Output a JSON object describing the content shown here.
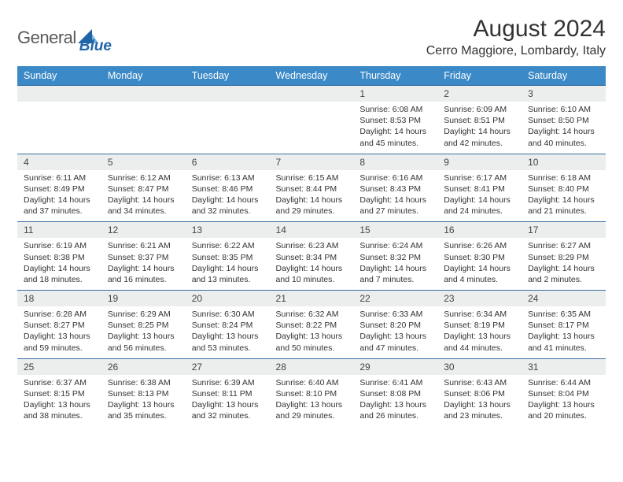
{
  "logo": {
    "text_gray": "General",
    "text_blue": "Blue"
  },
  "title": "August 2024",
  "location": "Cerro Maggiore, Lombardy, Italy",
  "colors": {
    "header_bg": "#3b89c7",
    "header_text": "#ffffff",
    "date_row_bg": "#eceded",
    "row_border": "#3b6fa0",
    "body_text": "#333333",
    "logo_gray": "#5a5a5a",
    "logo_blue": "#1f66a8"
  },
  "days": [
    "Sunday",
    "Monday",
    "Tuesday",
    "Wednesday",
    "Thursday",
    "Friday",
    "Saturday"
  ],
  "weeks": [
    [
      null,
      null,
      null,
      null,
      {
        "n": "1",
        "sunrise": "6:08 AM",
        "sunset": "8:53 PM",
        "dl1": "Daylight: 14 hours",
        "dl2": "and 45 minutes."
      },
      {
        "n": "2",
        "sunrise": "6:09 AM",
        "sunset": "8:51 PM",
        "dl1": "Daylight: 14 hours",
        "dl2": "and 42 minutes."
      },
      {
        "n": "3",
        "sunrise": "6:10 AM",
        "sunset": "8:50 PM",
        "dl1": "Daylight: 14 hours",
        "dl2": "and 40 minutes."
      }
    ],
    [
      {
        "n": "4",
        "sunrise": "6:11 AM",
        "sunset": "8:49 PM",
        "dl1": "Daylight: 14 hours",
        "dl2": "and 37 minutes."
      },
      {
        "n": "5",
        "sunrise": "6:12 AM",
        "sunset": "8:47 PM",
        "dl1": "Daylight: 14 hours",
        "dl2": "and 34 minutes."
      },
      {
        "n": "6",
        "sunrise": "6:13 AM",
        "sunset": "8:46 PM",
        "dl1": "Daylight: 14 hours",
        "dl2": "and 32 minutes."
      },
      {
        "n": "7",
        "sunrise": "6:15 AM",
        "sunset": "8:44 PM",
        "dl1": "Daylight: 14 hours",
        "dl2": "and 29 minutes."
      },
      {
        "n": "8",
        "sunrise": "6:16 AM",
        "sunset": "8:43 PM",
        "dl1": "Daylight: 14 hours",
        "dl2": "and 27 minutes."
      },
      {
        "n": "9",
        "sunrise": "6:17 AM",
        "sunset": "8:41 PM",
        "dl1": "Daylight: 14 hours",
        "dl2": "and 24 minutes."
      },
      {
        "n": "10",
        "sunrise": "6:18 AM",
        "sunset": "8:40 PM",
        "dl1": "Daylight: 14 hours",
        "dl2": "and 21 minutes."
      }
    ],
    [
      {
        "n": "11",
        "sunrise": "6:19 AM",
        "sunset": "8:38 PM",
        "dl1": "Daylight: 14 hours",
        "dl2": "and 18 minutes."
      },
      {
        "n": "12",
        "sunrise": "6:21 AM",
        "sunset": "8:37 PM",
        "dl1": "Daylight: 14 hours",
        "dl2": "and 16 minutes."
      },
      {
        "n": "13",
        "sunrise": "6:22 AM",
        "sunset": "8:35 PM",
        "dl1": "Daylight: 14 hours",
        "dl2": "and 13 minutes."
      },
      {
        "n": "14",
        "sunrise": "6:23 AM",
        "sunset": "8:34 PM",
        "dl1": "Daylight: 14 hours",
        "dl2": "and 10 minutes."
      },
      {
        "n": "15",
        "sunrise": "6:24 AM",
        "sunset": "8:32 PM",
        "dl1": "Daylight: 14 hours",
        "dl2": "and 7 minutes."
      },
      {
        "n": "16",
        "sunrise": "6:26 AM",
        "sunset": "8:30 PM",
        "dl1": "Daylight: 14 hours",
        "dl2": "and 4 minutes."
      },
      {
        "n": "17",
        "sunrise": "6:27 AM",
        "sunset": "8:29 PM",
        "dl1": "Daylight: 14 hours",
        "dl2": "and 2 minutes."
      }
    ],
    [
      {
        "n": "18",
        "sunrise": "6:28 AM",
        "sunset": "8:27 PM",
        "dl1": "Daylight: 13 hours",
        "dl2": "and 59 minutes."
      },
      {
        "n": "19",
        "sunrise": "6:29 AM",
        "sunset": "8:25 PM",
        "dl1": "Daylight: 13 hours",
        "dl2": "and 56 minutes."
      },
      {
        "n": "20",
        "sunrise": "6:30 AM",
        "sunset": "8:24 PM",
        "dl1": "Daylight: 13 hours",
        "dl2": "and 53 minutes."
      },
      {
        "n": "21",
        "sunrise": "6:32 AM",
        "sunset": "8:22 PM",
        "dl1": "Daylight: 13 hours",
        "dl2": "and 50 minutes."
      },
      {
        "n": "22",
        "sunrise": "6:33 AM",
        "sunset": "8:20 PM",
        "dl1": "Daylight: 13 hours",
        "dl2": "and 47 minutes."
      },
      {
        "n": "23",
        "sunrise": "6:34 AM",
        "sunset": "8:19 PM",
        "dl1": "Daylight: 13 hours",
        "dl2": "and 44 minutes."
      },
      {
        "n": "24",
        "sunrise": "6:35 AM",
        "sunset": "8:17 PM",
        "dl1": "Daylight: 13 hours",
        "dl2": "and 41 minutes."
      }
    ],
    [
      {
        "n": "25",
        "sunrise": "6:37 AM",
        "sunset": "8:15 PM",
        "dl1": "Daylight: 13 hours",
        "dl2": "and 38 minutes."
      },
      {
        "n": "26",
        "sunrise": "6:38 AM",
        "sunset": "8:13 PM",
        "dl1": "Daylight: 13 hours",
        "dl2": "and 35 minutes."
      },
      {
        "n": "27",
        "sunrise": "6:39 AM",
        "sunset": "8:11 PM",
        "dl1": "Daylight: 13 hours",
        "dl2": "and 32 minutes."
      },
      {
        "n": "28",
        "sunrise": "6:40 AM",
        "sunset": "8:10 PM",
        "dl1": "Daylight: 13 hours",
        "dl2": "and 29 minutes."
      },
      {
        "n": "29",
        "sunrise": "6:41 AM",
        "sunset": "8:08 PM",
        "dl1": "Daylight: 13 hours",
        "dl2": "and 26 minutes."
      },
      {
        "n": "30",
        "sunrise": "6:43 AM",
        "sunset": "8:06 PM",
        "dl1": "Daylight: 13 hours",
        "dl2": "and 23 minutes."
      },
      {
        "n": "31",
        "sunrise": "6:44 AM",
        "sunset": "8:04 PM",
        "dl1": "Daylight: 13 hours",
        "dl2": "and 20 minutes."
      }
    ]
  ]
}
